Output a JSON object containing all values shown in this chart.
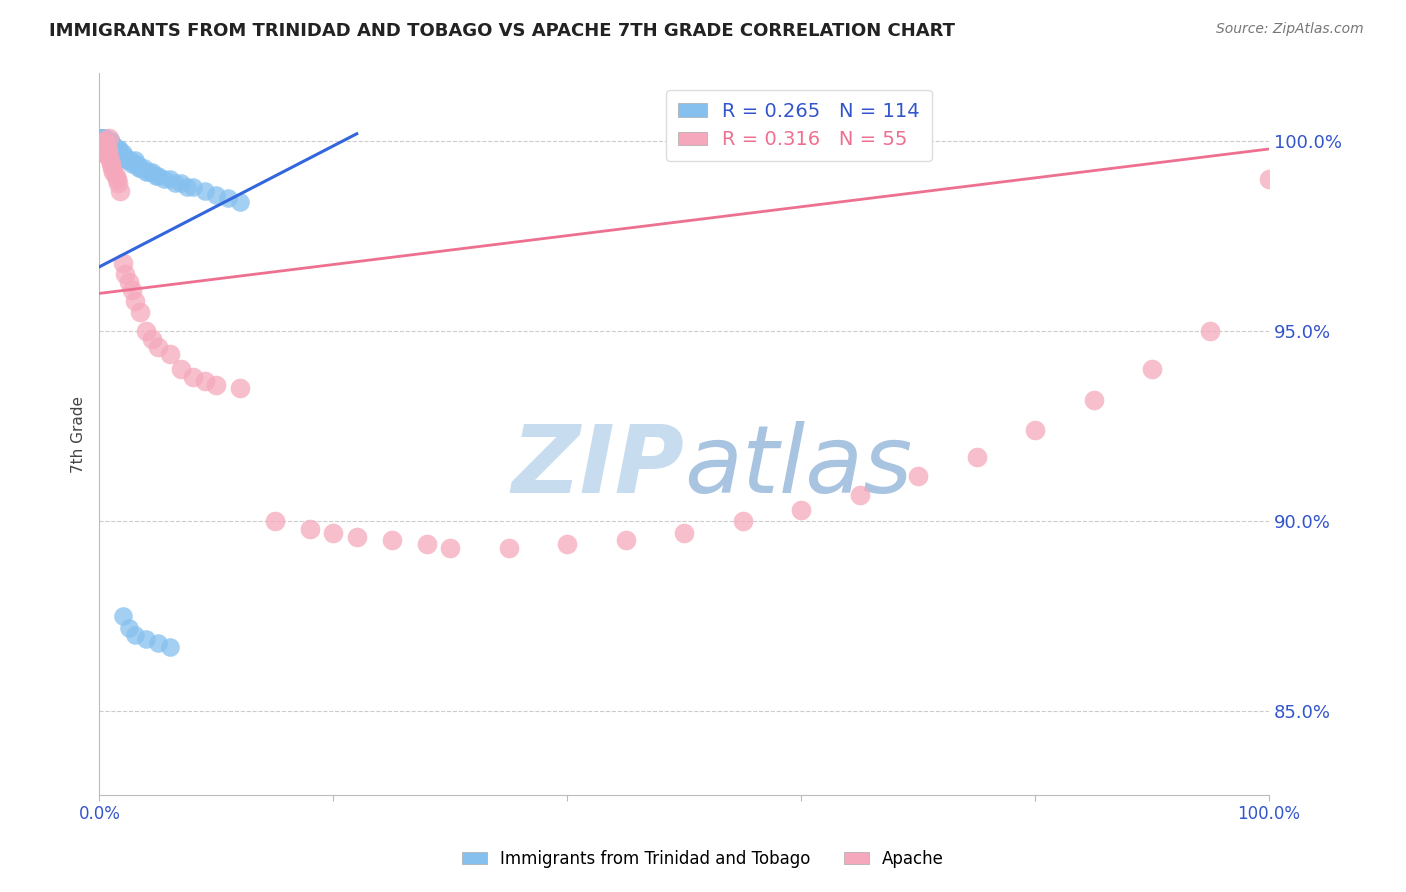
{
  "title": "IMMIGRANTS FROM TRINIDAD AND TOBAGO VS APACHE 7TH GRADE CORRELATION CHART",
  "source": "Source: ZipAtlas.com",
  "ylabel": "7th Grade",
  "ytick_labels": [
    "85.0%",
    "90.0%",
    "95.0%",
    "100.0%"
  ],
  "ytick_values": [
    0.85,
    0.9,
    0.95,
    1.0
  ],
  "xmin": 0.0,
  "xmax": 1.0,
  "ymin": 0.828,
  "ymax": 1.018,
  "blue_R": 0.265,
  "blue_N": 114,
  "pink_R": 0.316,
  "pink_N": 55,
  "legend_label_blue": "Immigrants from Trinidad and Tobago",
  "legend_label_pink": "Apache",
  "blue_color": "#85C0EE",
  "pink_color": "#F5A8BC",
  "blue_line_color": "#3366DD",
  "pink_line_color": "#EE7090",
  "title_color": "#222222",
  "source_color": "#777777",
  "axis_label_color": "#3355CC",
  "grid_color": "#CCCCCC",
  "watermark_zip_color": "#C8DCF0",
  "watermark_atlas_color": "#A0B8D8",
  "blue_x": [
    0.001,
    0.001,
    0.002,
    0.002,
    0.002,
    0.002,
    0.003,
    0.003,
    0.003,
    0.003,
    0.004,
    0.004,
    0.004,
    0.004,
    0.005,
    0.005,
    0.005,
    0.005,
    0.005,
    0.006,
    0.006,
    0.006,
    0.006,
    0.007,
    0.007,
    0.007,
    0.007,
    0.008,
    0.008,
    0.008,
    0.008,
    0.009,
    0.009,
    0.009,
    0.009,
    0.01,
    0.01,
    0.01,
    0.01,
    0.011,
    0.011,
    0.012,
    0.012,
    0.012,
    0.013,
    0.013,
    0.014,
    0.014,
    0.015,
    0.015,
    0.016,
    0.016,
    0.017,
    0.017,
    0.018,
    0.018,
    0.019,
    0.02,
    0.02,
    0.021,
    0.022,
    0.023,
    0.024,
    0.025,
    0.026,
    0.028,
    0.03,
    0.03,
    0.032,
    0.034,
    0.035,
    0.038,
    0.04,
    0.042,
    0.045,
    0.048,
    0.05,
    0.055,
    0.06,
    0.065,
    0.07,
    0.075,
    0.08,
    0.09,
    0.1,
    0.11,
    0.12,
    0.001,
    0.001,
    0.001,
    0.002,
    0.002,
    0.003,
    0.003,
    0.004,
    0.004,
    0.005,
    0.005,
    0.006,
    0.006,
    0.007,
    0.007,
    0.008,
    0.008,
    0.009,
    0.01,
    0.012,
    0.015,
    0.02,
    0.025,
    0.03,
    0.04,
    0.05,
    0.06
  ],
  "blue_y": [
    0.999,
    1.0,
    0.998,
    0.999,
    1.0,
    1.001,
    0.998,
    0.999,
    1.0,
    1.001,
    0.998,
    0.999,
    1.0,
    1.001,
    0.997,
    0.998,
    0.999,
    1.0,
    1.001,
    0.997,
    0.998,
    0.999,
    1.0,
    0.997,
    0.998,
    0.999,
    1.0,
    0.997,
    0.998,
    0.999,
    1.0,
    0.997,
    0.998,
    0.999,
    1.0,
    0.997,
    0.998,
    0.999,
    1.0,
    0.998,
    0.999,
    0.997,
    0.998,
    0.999,
    0.997,
    0.998,
    0.997,
    0.998,
    0.997,
    0.998,
    0.997,
    0.998,
    0.997,
    0.998,
    0.996,
    0.997,
    0.996,
    0.996,
    0.997,
    0.996,
    0.996,
    0.995,
    0.995,
    0.995,
    0.995,
    0.994,
    0.994,
    0.995,
    0.994,
    0.993,
    0.993,
    0.993,
    0.992,
    0.992,
    0.992,
    0.991,
    0.991,
    0.99,
    0.99,
    0.989,
    0.989,
    0.988,
    0.988,
    0.987,
    0.986,
    0.985,
    0.984,
    1.0,
    1.001,
    1.001,
    1.0,
    1.001,
    0.999,
    1.0,
    0.999,
    1.0,
    0.998,
    0.999,
    0.998,
    0.999,
    0.998,
    0.999,
    0.997,
    0.998,
    0.997,
    0.996,
    0.996,
    0.995,
    0.875,
    0.872,
    0.87,
    0.869,
    0.868,
    0.867
  ],
  "pink_x": [
    0.003,
    0.004,
    0.005,
    0.005,
    0.006,
    0.006,
    0.007,
    0.007,
    0.008,
    0.009,
    0.01,
    0.011,
    0.012,
    0.014,
    0.015,
    0.016,
    0.018,
    0.02,
    0.022,
    0.025,
    0.028,
    0.03,
    0.035,
    0.04,
    0.045,
    0.05,
    0.06,
    0.07,
    0.08,
    0.09,
    0.1,
    0.12,
    0.15,
    0.18,
    0.2,
    0.22,
    0.25,
    0.28,
    0.3,
    0.35,
    0.4,
    0.45,
    0.5,
    0.55,
    0.6,
    0.65,
    0.7,
    0.75,
    0.8,
    0.85,
    0.9,
    0.95,
    1.0,
    0.004,
    0.008
  ],
  "pink_y": [
    0.997,
    0.998,
    0.999,
    1.0,
    0.998,
    0.999,
    0.997,
    0.998,
    0.996,
    0.995,
    0.994,
    0.993,
    0.992,
    0.991,
    0.99,
    0.989,
    0.987,
    0.968,
    0.965,
    0.963,
    0.961,
    0.958,
    0.955,
    0.95,
    0.948,
    0.946,
    0.944,
    0.94,
    0.938,
    0.937,
    0.936,
    0.935,
    0.9,
    0.898,
    0.897,
    0.896,
    0.895,
    0.894,
    0.893,
    0.893,
    0.894,
    0.895,
    0.897,
    0.9,
    0.903,
    0.907,
    0.912,
    0.917,
    0.924,
    0.932,
    0.94,
    0.95,
    0.99,
    1.0,
    1.001
  ],
  "blue_line_x": [
    0.0,
    0.22
  ],
  "blue_line_y": [
    0.967,
    1.002
  ],
  "pink_line_x": [
    0.0,
    1.0
  ],
  "pink_line_y": [
    0.96,
    0.998
  ]
}
